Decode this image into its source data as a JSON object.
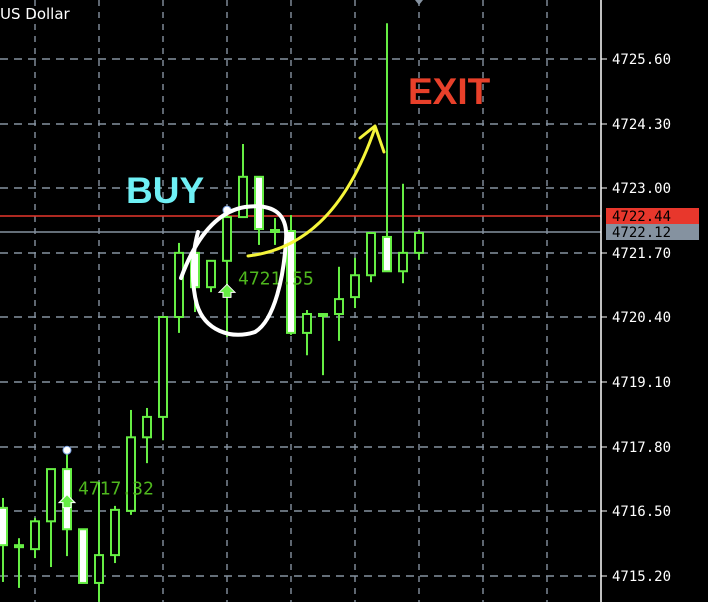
{
  "header": {
    "symbol_title": "US Dollar"
  },
  "colors": {
    "background": "#000000",
    "grid": "#8592a0",
    "bull_candle": "#66ee44",
    "bear_candle_fill": "#ffffff",
    "ask_line": "#e8372c",
    "bid_line": "#8592a0",
    "buy_text": "#6ff0f5",
    "exit_text": "#e8402a",
    "arrow_annotation": "#f5f53a",
    "circle_annotation": "#ffffff",
    "trade_label": "#4fb81e"
  },
  "annotations": {
    "buy": "BUY",
    "exit": "EXIT"
  },
  "chart_data": {
    "type": "candlestick",
    "title": "",
    "grid": true,
    "y_axis": {
      "position": "right",
      "ticks": [
        "4725.60",
        "4724.30",
        "4723.00",
        "4721.70",
        "4720.40",
        "4719.10",
        "4717.80",
        "4716.50",
        "4715.20"
      ],
      "range": [
        4714.66,
        4726.79
      ]
    },
    "price_lines": {
      "ask": "4722.44",
      "bid": "4722.12"
    },
    "trades": [
      {
        "label": "4717.32",
        "type": "buy",
        "candle_index": 4
      },
      {
        "label": "4721.55",
        "type": "buy",
        "candle_index": 14
      }
    ],
    "candles": [
      {
        "o": 4716.57,
        "h": 4716.77,
        "l": 4715.08,
        "c": 4715.82
      },
      {
        "o": 4715.82,
        "h": 4715.96,
        "l": 4714.96,
        "c": 4715.78
      },
      {
        "o": 4715.74,
        "h": 4716.37,
        "l": 4715.56,
        "c": 4716.3
      },
      {
        "o": 4716.3,
        "h": 4717.35,
        "l": 4715.38,
        "c": 4717.35
      },
      {
        "o": 4717.35,
        "h": 4717.69,
        "l": 4715.6,
        "c": 4716.14
      },
      {
        "o": 4716.14,
        "h": 4716.14,
        "l": 4715.06,
        "c": 4715.06
      },
      {
        "o": 4715.06,
        "h": 4717.09,
        "l": 4714.68,
        "c": 4715.62
      },
      {
        "o": 4715.62,
        "h": 4716.61,
        "l": 4715.46,
        "c": 4716.53
      },
      {
        "o": 4716.51,
        "h": 4718.54,
        "l": 4716.43,
        "c": 4717.99
      },
      {
        "o": 4717.99,
        "h": 4718.58,
        "l": 4717.47,
        "c": 4718.4
      },
      {
        "o": 4718.4,
        "h": 4720.41,
        "l": 4717.93,
        "c": 4720.41
      },
      {
        "o": 4720.41,
        "h": 4721.9,
        "l": 4720.09,
        "c": 4721.7
      },
      {
        "o": 4721.7,
        "h": 4721.86,
        "l": 4720.51,
        "c": 4721.01
      },
      {
        "o": 4721.01,
        "h": 4721.54,
        "l": 4720.91,
        "c": 4721.54
      },
      {
        "o": 4721.54,
        "h": 4722.52,
        "l": 4720.01,
        "c": 4722.42
      },
      {
        "o": 4722.42,
        "h": 4723.89,
        "l": 4722.42,
        "c": 4723.23
      },
      {
        "o": 4723.23,
        "h": 4723.23,
        "l": 4721.86,
        "c": 4722.18
      },
      {
        "o": 4722.16,
        "h": 4722.4,
        "l": 4721.86,
        "c": 4722.12
      },
      {
        "o": 4722.14,
        "h": 4722.46,
        "l": 4720.05,
        "c": 4720.09
      },
      {
        "o": 4720.09,
        "h": 4720.55,
        "l": 4719.64,
        "c": 4720.47
      },
      {
        "o": 4720.47,
        "h": 4720.49,
        "l": 4719.24,
        "c": 4720.47
      },
      {
        "o": 4720.47,
        "h": 4721.42,
        "l": 4719.93,
        "c": 4720.77
      },
      {
        "o": 4720.81,
        "h": 4721.6,
        "l": 4720.59,
        "c": 4721.25
      },
      {
        "o": 4721.25,
        "h": 4722.1,
        "l": 4721.11,
        "c": 4722.1
      },
      {
        "o": 4722.02,
        "h": 4726.32,
        "l": 4721.33,
        "c": 4721.33
      },
      {
        "o": 4721.33,
        "h": 4723.09,
        "l": 4721.09,
        "c": 4721.7
      },
      {
        "o": 4721.7,
        "h": 4722.16,
        "l": 4721.56,
        "c": 4722.1
      }
    ]
  }
}
